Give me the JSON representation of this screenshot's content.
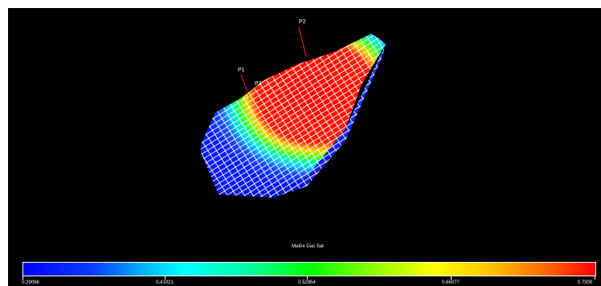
{
  "viewer": {
    "wells": [
      {
        "label": "P1"
      },
      {
        "label": "P2"
      },
      {
        "label": "P3"
      }
    ],
    "colorbar": {
      "title": "Matrix  Gas Sat",
      "ticks": [
        "0.29098",
        "0.41021",
        "0.52954",
        "0.65077",
        "0.7300"
      ],
      "colors": [
        "#0000ff",
        "#00ffff",
        "#00ff00",
        "#ffff00",
        "#ff0000"
      ]
    },
    "background_color": "#000000"
  }
}
